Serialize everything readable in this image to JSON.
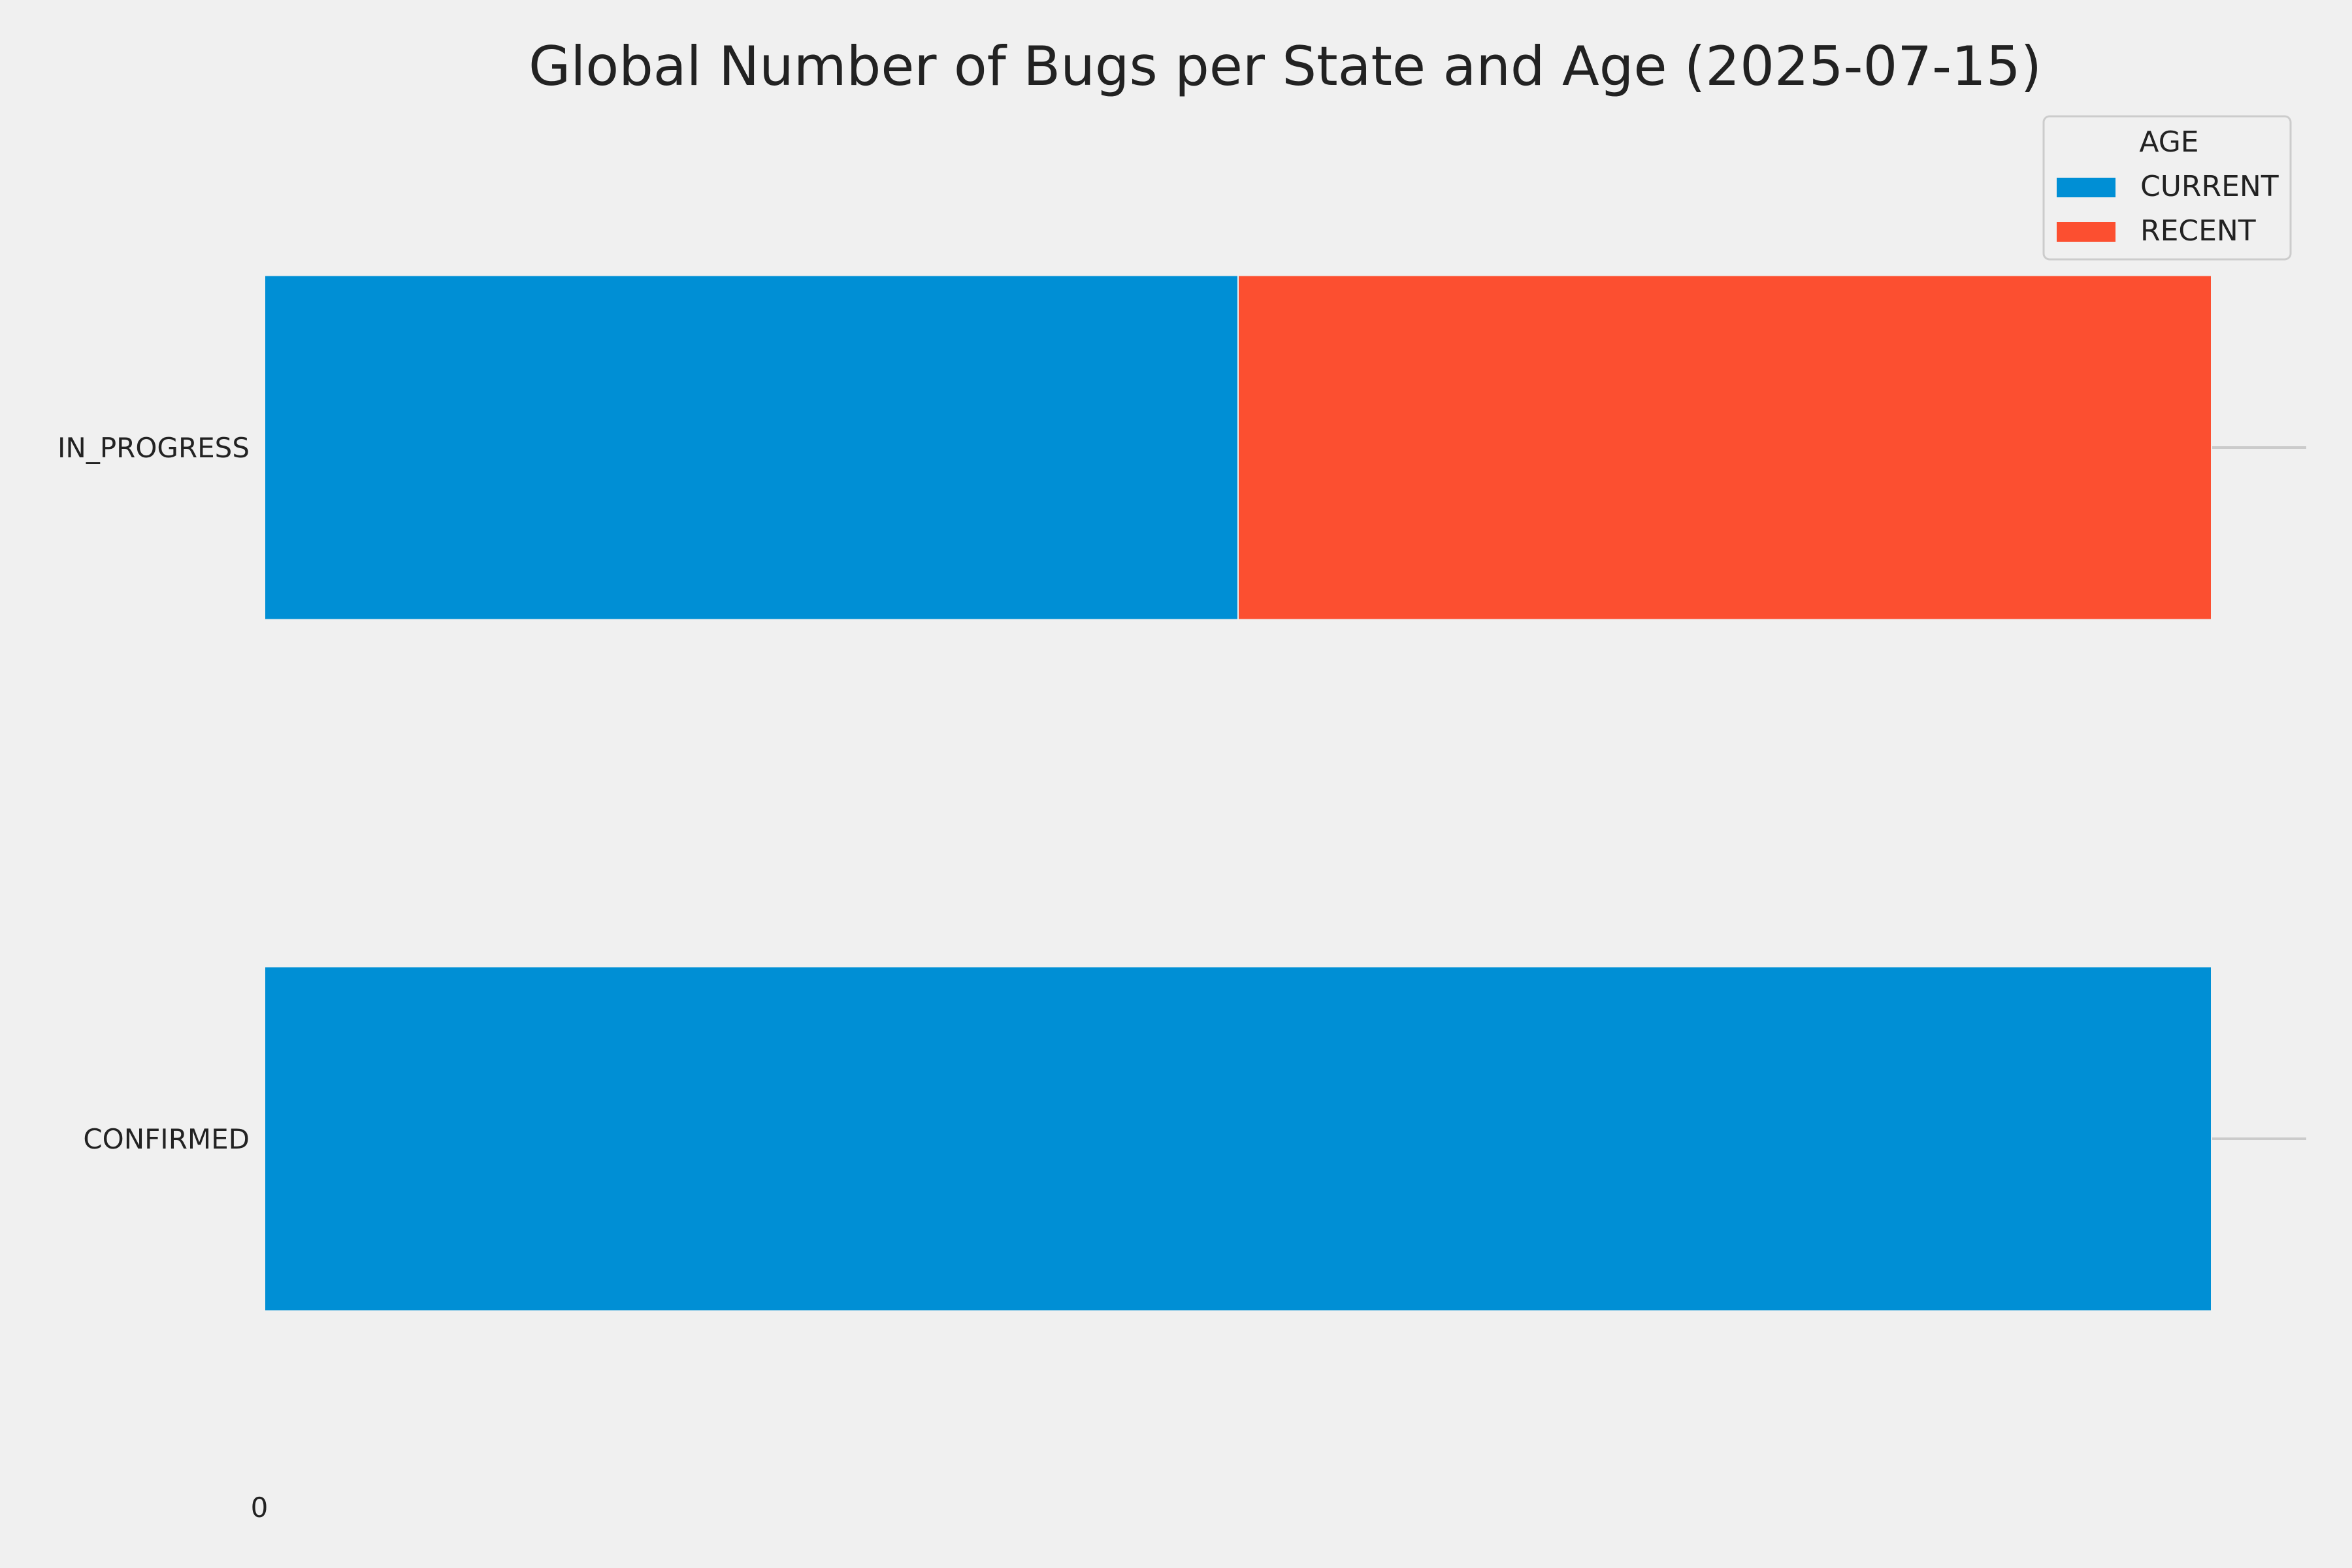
{
  "chart_data": {
    "type": "bar",
    "orientation": "horizontal",
    "stacked": true,
    "title": "Global Number of Bugs per State and Age (2025-07-15)",
    "categories": [
      "IN_PROGRESS",
      "CONFIRMED"
    ],
    "series": [
      {
        "name": "CURRENT",
        "values": [
          1,
          2
        ],
        "color": "#008fd5"
      },
      {
        "name": "RECENT",
        "values": [
          1,
          0
        ],
        "color": "#fc4f30"
      }
    ],
    "x_ticks": [
      "0"
    ],
    "xlim": [
      0,
      2
    ],
    "grid": true,
    "legend": {
      "title": "AGE",
      "placement": "top-right"
    }
  }
}
